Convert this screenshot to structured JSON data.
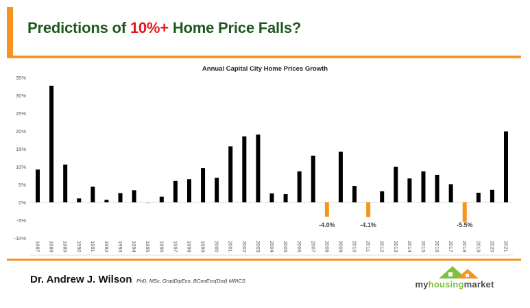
{
  "header": {
    "title_pre": "Predictions of ",
    "title_highlight": "10%+",
    "title_post": " Home Price Falls?"
  },
  "footer": {
    "author_name": "Dr. Andrew J. Wilson",
    "author_quals": "PhD, MSc, GradDipEco, BConEco(Dist) MRICS",
    "logo": {
      "my": "my",
      "housing": "housing",
      "market": "market",
      "icon": "house-roof-icon"
    }
  },
  "colors": {
    "accent": "#f7941d",
    "title": "#1e5a1e",
    "highlight": "#e8141b",
    "bar_positive": "#000000",
    "bar_negative": "#f7941d"
  },
  "chart_data": {
    "type": "bar",
    "title": "Annual Capital City Home Prices Growth",
    "xlabel": "",
    "ylabel": "",
    "ylim": [
      -10,
      35
    ],
    "yticks": [
      35,
      30,
      25,
      20,
      15,
      10,
      5,
      0,
      -5,
      -10
    ],
    "ytick_labels": [
      "35%",
      "30%",
      "25%",
      "20%",
      "15%",
      "10%",
      "5%",
      "0%",
      "-5%",
      "-10%"
    ],
    "grid": false,
    "legend": "none",
    "categories": [
      "1987",
      "1988",
      "1989",
      "1990",
      "1991",
      "1992",
      "1993",
      "1994",
      "1995",
      "1996",
      "1997",
      "1998",
      "1999",
      "2000",
      "2001",
      "2002",
      "2003",
      "2004",
      "2005",
      "2006",
      "2007",
      "2008",
      "2009",
      "2010",
      "2011",
      "2012",
      "2013",
      "2014",
      "2015",
      "2016",
      "2017",
      "2018",
      "2019",
      "2020",
      "2021"
    ],
    "values": [
      9.2,
      32.7,
      10.6,
      1.1,
      4.4,
      0.7,
      2.6,
      3.4,
      -0.3,
      1.6,
      6.0,
      6.5,
      9.6,
      6.9,
      15.7,
      18.5,
      19.0,
      2.5,
      2.3,
      8.7,
      13.1,
      -4.0,
      14.2,
      4.6,
      -4.1,
      3.1,
      10.0,
      6.7,
      8.7,
      7.7,
      5.1,
      -5.5,
      2.7,
      3.5,
      19.9
    ],
    "annotations": [
      {
        "category": "2008",
        "label": "-4.0%"
      },
      {
        "category": "2011",
        "label": "-4.1%"
      },
      {
        "category": "2018",
        "label": "-5.5%"
      }
    ]
  }
}
